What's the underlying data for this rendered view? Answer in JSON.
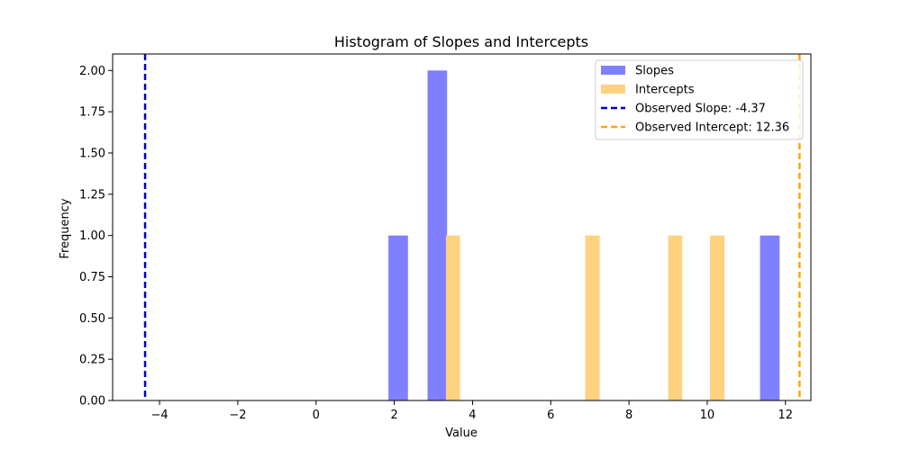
{
  "chart_data": {
    "type": "bar",
    "title": "Histogram of Slopes and Intercepts",
    "xlabel": "Value",
    "ylabel": "Frequency",
    "xlim": [
      -5.2,
      12.65
    ],
    "ylim": [
      0,
      2.1
    ],
    "xticks": [
      -4,
      -2,
      0,
      2,
      4,
      6,
      8,
      10,
      12
    ],
    "yticks": [
      0.0,
      0.25,
      0.5,
      0.75,
      1.0,
      1.25,
      1.5,
      1.75,
      2.0
    ],
    "xtick_labels": [
      "−4",
      "−2",
      "0",
      "2",
      "4",
      "6",
      "8",
      "10",
      "12"
    ],
    "ytick_labels": [
      "0.00",
      "0.25",
      "0.50",
      "0.75",
      "1.00",
      "1.25",
      "1.50",
      "1.75",
      "2.00"
    ],
    "grid": false,
    "legend_position": "top-right",
    "series": [
      {
        "name": "Slopes",
        "color": "#8080ff",
        "bins": [
          {
            "x0": 1.85,
            "x1": 2.35,
            "count": 1
          },
          {
            "x0": 2.85,
            "x1": 3.35,
            "count": 2
          },
          {
            "x0": 11.35,
            "x1": 11.85,
            "count": 1
          }
        ]
      },
      {
        "name": "Intercepts",
        "color": "#ffd280",
        "bins": [
          {
            "x0": 3.32,
            "x1": 3.68,
            "count": 1
          },
          {
            "x0": 6.88,
            "x1": 7.25,
            "count": 1
          },
          {
            "x0": 9.0,
            "x1": 9.36,
            "count": 1
          },
          {
            "x0": 10.07,
            "x1": 10.44,
            "count": 1
          }
        ]
      }
    ],
    "reference_lines": [
      {
        "name": "Observed Slope: -4.37",
        "x": -4.37,
        "color": "#0000cc",
        "style": "dashed"
      },
      {
        "name": "Observed Intercept: 12.36",
        "x": 12.36,
        "color": "#ffa500",
        "style": "dashed"
      }
    ]
  }
}
